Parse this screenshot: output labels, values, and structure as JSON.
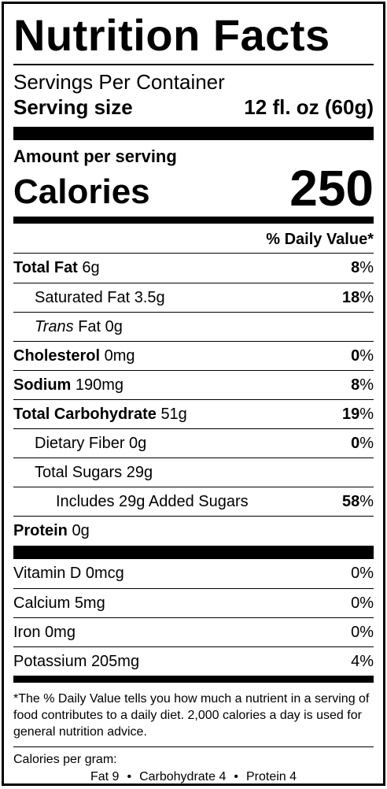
{
  "title": "Nutrition Facts",
  "servings_per_container": "Servings Per Container",
  "serving_size": {
    "label": "Serving size",
    "value": "12 fl. oz (60g)"
  },
  "amount_per_serving": "Amount per serving",
  "calories": {
    "label": "Calories",
    "value": "250"
  },
  "daily_value_header": "% Daily Value*",
  "nutrients": [
    {
      "name": "Total Fat",
      "amount": "6g",
      "pct": "8",
      "bold_name": true,
      "indent": 0
    },
    {
      "name": "Saturated Fat",
      "amount": "3.5g",
      "pct": "18",
      "bold_name": false,
      "indent": 1
    },
    {
      "name_italic": "Trans",
      "name": " Fat",
      "amount": "0g",
      "pct": "",
      "bold_name": false,
      "indent": 1
    },
    {
      "name": "Cholesterol",
      "amount": "0mg",
      "pct": "0",
      "bold_name": true,
      "indent": 0
    },
    {
      "name": "Sodium",
      "amount": "190mg",
      "pct": "8",
      "bold_name": true,
      "indent": 0
    },
    {
      "name": "Total Carbohydrate",
      "amount": "51g",
      "pct": "19",
      "bold_name": true,
      "indent": 0
    },
    {
      "name": "Dietary Fiber",
      "amount": "0g",
      "pct": "0",
      "bold_name": false,
      "indent": 1
    },
    {
      "name": "Total Sugars",
      "amount": "29g",
      "pct": "",
      "bold_name": false,
      "indent": 1
    },
    {
      "name": "Includes 29g Added Sugars",
      "amount": "",
      "pct": "58",
      "bold_name": false,
      "indent": 2
    },
    {
      "name": "Protein",
      "amount": "0g",
      "pct": "",
      "bold_name": true,
      "indent": 0
    }
  ],
  "percent_sign": "%",
  "vitamins": [
    {
      "name": "Vitamin D",
      "amount": "0mcg",
      "pct": "0%"
    },
    {
      "name": "Calcium",
      "amount": "5mg",
      "pct": "0%"
    },
    {
      "name": "Iron",
      "amount": "0mg",
      "pct": "0%"
    },
    {
      "name": "Potassium",
      "amount": "205mg",
      "pct": "4%"
    }
  ],
  "footnote": "*The % Daily Value tells you how much a nutrient in a serving of food contributes to a daily diet. 2,000 calories a day is used for general nutrition advice.",
  "calories_per_gram": {
    "label": "Calories per gram:",
    "fat": "Fat 9",
    "carbohydrate": "Carbohydrate 4",
    "protein": "Protein 4",
    "separator": "•"
  }
}
